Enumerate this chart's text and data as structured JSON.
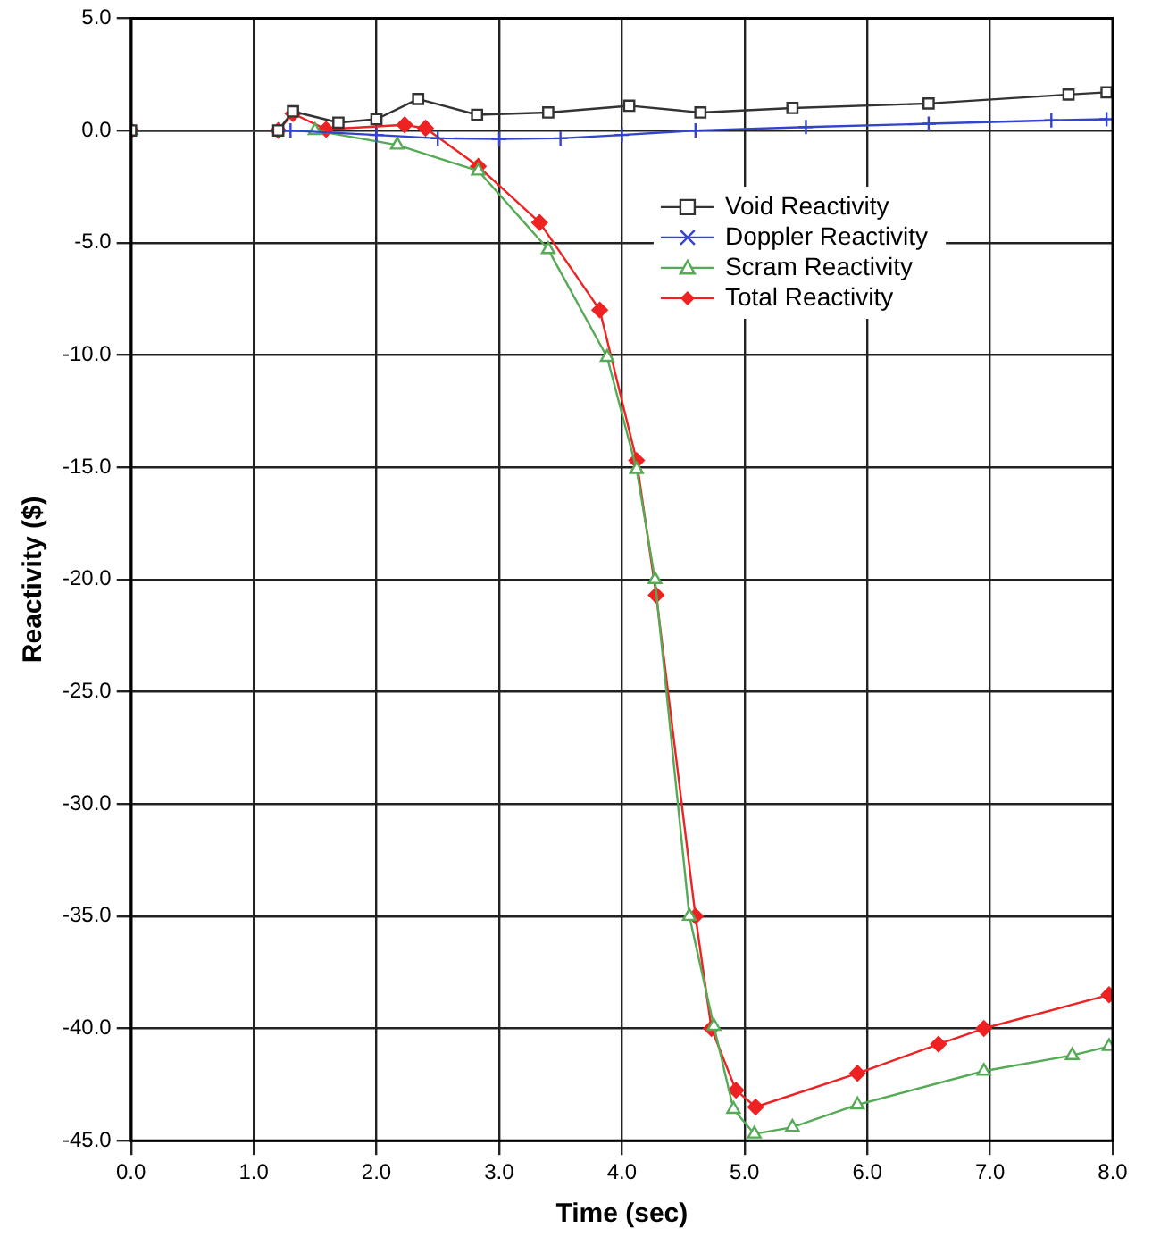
{
  "chart_data": {
    "type": "line",
    "xlabel": "Time (sec)",
    "ylabel": "Reactivity ($)",
    "xlim": [
      0,
      8
    ],
    "ylim": [
      -45,
      5
    ],
    "xticks": [
      {
        "value": 0,
        "label": "0.0"
      },
      {
        "value": 1,
        "label": "1.0"
      },
      {
        "value": 2,
        "label": "2.0"
      },
      {
        "value": 3,
        "label": "3.0"
      },
      {
        "value": 4,
        "label": "4.0"
      },
      {
        "value": 5,
        "label": "5.0"
      },
      {
        "value": 6,
        "label": "6.0"
      },
      {
        "value": 7,
        "label": "7.0"
      },
      {
        "value": 8,
        "label": "8.0"
      }
    ],
    "yticks": [
      {
        "value": 5,
        "label": "5.0"
      },
      {
        "value": 0,
        "label": "0.0"
      },
      {
        "value": -5,
        "label": "-5.0"
      },
      {
        "value": -10,
        "label": "-10.0"
      },
      {
        "value": -15,
        "label": "-15.0"
      },
      {
        "value": -20,
        "label": "-20.0"
      },
      {
        "value": -25,
        "label": "-25.0"
      },
      {
        "value": -30,
        "label": "-30.0"
      },
      {
        "value": -35,
        "label": "-35.0"
      },
      {
        "value": -40,
        "label": "-40.0"
      },
      {
        "value": -45,
        "label": "-45.0"
      }
    ],
    "grid": true,
    "legend": "top right",
    "line_style": "solid",
    "series": [
      {
        "name": "Void Reactivity",
        "color": "#333333",
        "marker": "square",
        "x": [
          0,
          1.2,
          1.32,
          1.69,
          2.0,
          2.34,
          2.82,
          3.4,
          4.06,
          4.64,
          5.39,
          6.5,
          7.64,
          7.95
        ],
        "values": [
          0,
          0,
          0.85,
          0.35,
          0.5,
          1.4,
          0.7,
          0.8,
          1.1,
          0.8,
          1.0,
          1.2,
          1.6,
          1.7
        ]
      },
      {
        "name": "Doppler Reactivity",
        "color": "#3344cc",
        "marker": "cross",
        "x": [
          0,
          1.3,
          2.0,
          2.5,
          3.0,
          3.5,
          4.0,
          4.6,
          5.5,
          6.5,
          7.5,
          7.95
        ],
        "values": [
          0,
          0,
          -0.2,
          -0.35,
          -0.38,
          -0.35,
          -0.2,
          0,
          0.15,
          0.3,
          0.45,
          0.5
        ]
      },
      {
        "name": "Scram Reactivity",
        "color": "#55aa55",
        "marker": "triangle",
        "x": [
          0,
          1.5,
          2.17,
          2.83,
          3.4,
          3.88,
          4.12,
          4.27,
          4.55,
          4.75,
          4.91,
          5.08,
          5.39,
          5.92,
          6.95,
          7.67,
          7.97
        ],
        "values": [
          0,
          0,
          -0.65,
          -1.8,
          -5.3,
          -10.1,
          -15.1,
          -20,
          -35,
          -39.9,
          -43.6,
          -44.7,
          -44.4,
          -43.4,
          -41.9,
          -41.2,
          -40.8
        ]
      },
      {
        "name": "Total Reactivity",
        "color": "#ee2222",
        "marker": "diamond",
        "x": [
          0,
          1.2,
          1.32,
          1.59,
          2.23,
          2.4,
          2.83,
          3.33,
          3.82,
          4.12,
          4.28,
          4.6,
          4.73,
          4.93,
          5.09,
          5.92,
          6.58,
          6.95,
          7.97
        ],
        "values": [
          0,
          0,
          0.75,
          0.05,
          0.25,
          0.1,
          -1.6,
          -4.1,
          -8.0,
          -14.7,
          -20.7,
          -35,
          -40,
          -42.75,
          -43.5,
          -42,
          -40.7,
          -40,
          -38.5
        ]
      }
    ]
  }
}
